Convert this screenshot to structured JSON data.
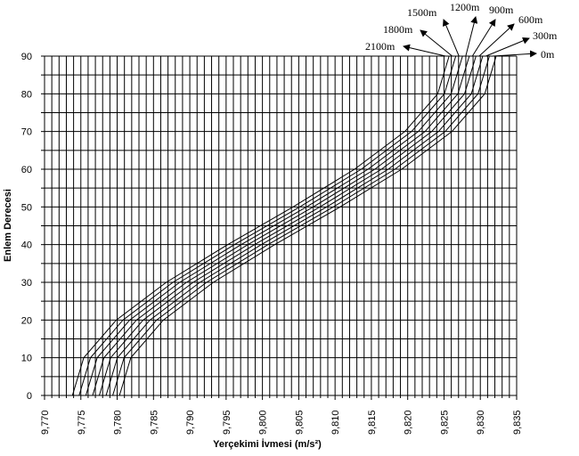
{
  "chart_data": {
    "type": "line",
    "title": "",
    "xlabel": "Yerçekimi İvmesi (m/s²)",
    "ylabel": "Enlem Derecesi",
    "xlim": [
      9.77,
      9.835
    ],
    "ylim": [
      0,
      90
    ],
    "x_ticks": [
      "9,770",
      "9,775",
      "9,780",
      "9,785",
      "9,790",
      "9,795",
      "9,800",
      "9,805",
      "9,810",
      "9,815",
      "9,820",
      "9,825",
      "9,830",
      "9,835"
    ],
    "y_ticks": [
      "0",
      "10",
      "20",
      "30",
      "40",
      "50",
      "60",
      "70",
      "80",
      "90"
    ],
    "grid": true,
    "grid_x_step": 0.001,
    "grid_y_step": 5,
    "line_color": "#000000",
    "y": [
      0,
      10,
      20,
      30,
      40,
      50,
      60,
      70,
      80,
      90
    ],
    "series": [
      {
        "name": "0m",
        "x": [
          9.78032,
          9.78188,
          9.78636,
          9.79324,
          9.80169,
          9.8107,
          9.81917,
          9.82609,
          9.83061,
          9.83218
        ]
      },
      {
        "name": "300m",
        "x": [
          9.77939,
          9.78095,
          9.78543,
          9.79231,
          9.80076,
          9.80977,
          9.81824,
          9.82516,
          9.82968,
          9.83125
        ]
      },
      {
        "name": "600m",
        "x": [
          9.77847,
          9.78003,
          9.78451,
          9.79139,
          9.79984,
          9.80885,
          9.81732,
          9.82424,
          9.82876,
          9.83033
        ]
      },
      {
        "name": "900m",
        "x": [
          9.77754,
          9.7791,
          9.78358,
          9.79046,
          9.79891,
          9.80792,
          9.81639,
          9.82331,
          9.82783,
          9.8294
        ]
      },
      {
        "name": "1200m",
        "x": [
          9.77662,
          9.77818,
          9.78266,
          9.78954,
          9.79799,
          9.807,
          9.81547,
          9.82239,
          9.82691,
          9.82848
        ]
      },
      {
        "name": "1500m",
        "x": [
          9.77569,
          9.77725,
          9.78173,
          9.78861,
          9.79706,
          9.80607,
          9.81454,
          9.82146,
          9.82598,
          9.82755
        ]
      },
      {
        "name": "1800m",
        "x": [
          9.77476,
          9.77632,
          9.7808,
          9.78768,
          9.79613,
          9.80514,
          9.81361,
          9.82053,
          9.82505,
          9.82662
        ]
      },
      {
        "name": "2100m",
        "x": [
          9.77384,
          9.7754,
          9.77988,
          9.78676,
          9.79521,
          9.80422,
          9.81269,
          9.81961,
          9.82413,
          9.8257
        ]
      }
    ]
  }
}
